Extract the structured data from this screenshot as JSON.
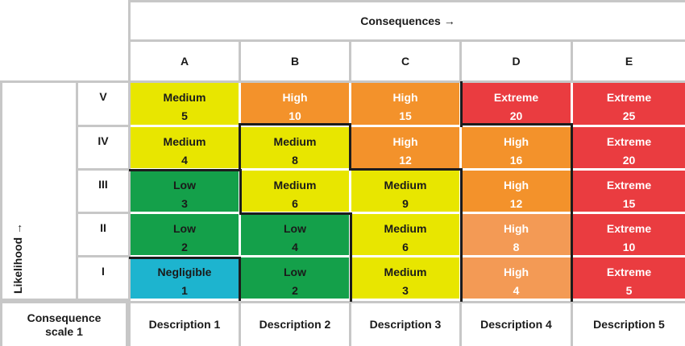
{
  "header": {
    "axis_title": "Consequences →"
  },
  "columns": [
    "A",
    "B",
    "C",
    "D",
    "E"
  ],
  "rows": [
    "V",
    "IV",
    "III",
    "II",
    "I"
  ],
  "y_axis_title": "Likelihood →",
  "footer": {
    "scale_label": "Consequence scale 1",
    "descriptions": [
      "Description 1",
      "Description 2",
      "Description 3",
      "Description 4",
      "Description 5"
    ]
  },
  "colors": {
    "Negligible": "#1db4cf",
    "Low": "#14a04a",
    "Medium": "#e8e600",
    "High": "#f3922b",
    "HighLight": "#f39a55",
    "Extreme": "#ea3c40",
    "grid": "#c7c7c7",
    "boundary": "#1c1c1c"
  },
  "matrix": [
    [
      {
        "level": "Medium",
        "score": "5"
      },
      {
        "level": "High",
        "score": "10"
      },
      {
        "level": "High",
        "score": "15"
      },
      {
        "level": "Extreme",
        "score": "20"
      },
      {
        "level": "Extreme",
        "score": "25"
      }
    ],
    [
      {
        "level": "Medium",
        "score": "4"
      },
      {
        "level": "Medium",
        "score": "8"
      },
      {
        "level": "High",
        "score": "12"
      },
      {
        "level": "High",
        "score": "16"
      },
      {
        "level": "Extreme",
        "score": "20"
      }
    ],
    [
      {
        "level": "Low",
        "score": "3"
      },
      {
        "level": "Medium",
        "score": "6"
      },
      {
        "level": "Medium",
        "score": "9"
      },
      {
        "level": "High",
        "score": "12"
      },
      {
        "level": "Extreme",
        "score": "15"
      }
    ],
    [
      {
        "level": "Low",
        "score": "2"
      },
      {
        "level": "Low",
        "score": "4"
      },
      {
        "level": "Medium",
        "score": "6"
      },
      {
        "level": "High",
        "score": "8",
        "shade": "HighLight"
      },
      {
        "level": "Extreme",
        "score": "10"
      }
    ],
    [
      {
        "level": "Negligible",
        "score": "1"
      },
      {
        "level": "Low",
        "score": "2"
      },
      {
        "level": "Medium",
        "score": "3"
      },
      {
        "level": "High",
        "score": "4",
        "shade": "HighLight"
      },
      {
        "level": "Extreme",
        "score": "5"
      }
    ]
  ]
}
